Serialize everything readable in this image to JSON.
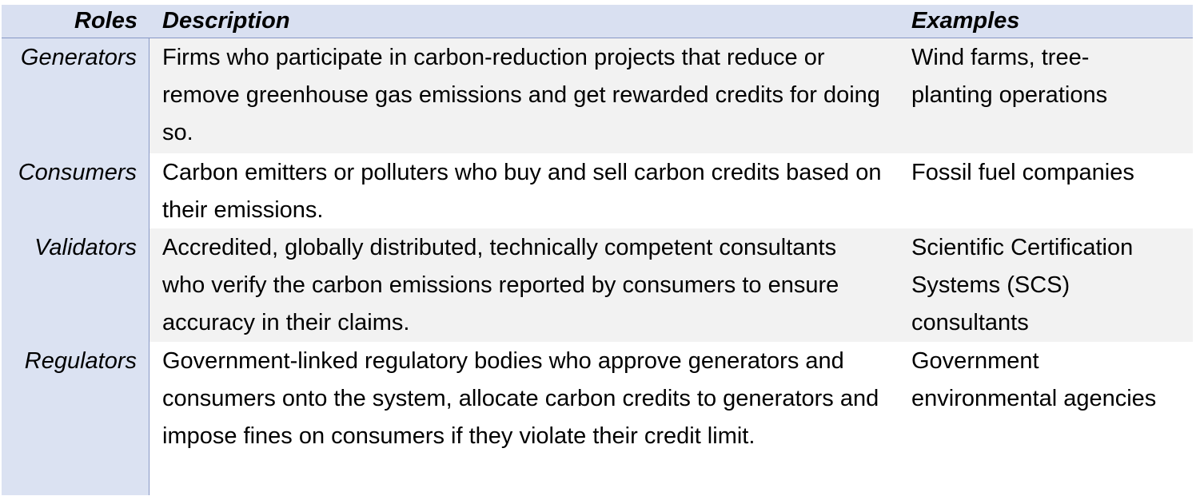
{
  "table": {
    "headers": {
      "roles": "Roles",
      "description": "Description",
      "examples": "Examples"
    },
    "rows": [
      {
        "role": "Generators",
        "description": "Firms who participate in carbon-reduction projects that reduce or remove greenhouse gas emissions and get rewarded credits for doing so.",
        "examples": "Wind farms, tree-planting operations"
      },
      {
        "role": "Consumers",
        "description": "Carbon emitters or polluters who buy and sell carbon credits based on their emissions.",
        "examples": "Fossil fuel companies"
      },
      {
        "role": "Validators",
        "description": "Accredited, globally distributed, technically competent consultants who verify the carbon emissions reported by consumers to ensure accuracy in their claims.",
        "examples": "Scientific Certification Systems (SCS) consultants"
      },
      {
        "role": "Regulators",
        "description": "Government-linked regulatory bodies who approve generators and consumers onto the system, allocate carbon credits to generators and impose fines on consumers if they violate their credit limit.",
        "examples": "Government environmental agencies"
      }
    ]
  },
  "colors": {
    "header_bg": "#d9e0f1",
    "role_column_bg": "#dbe2f2",
    "shaded_row_bg": "#f2f2f2",
    "border": "#8797c6"
  }
}
